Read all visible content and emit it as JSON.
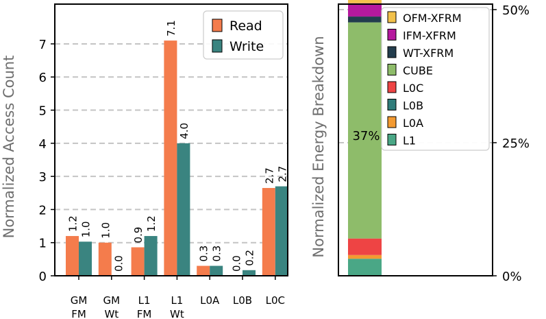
{
  "chart_data": [
    {
      "type": "bar",
      "ylabel": "Normalized Access Count",
      "ylim": [
        0,
        8.2
      ],
      "yticks": [
        0,
        1,
        2,
        3,
        4,
        5,
        6,
        7
      ],
      "grid": "y-dashed",
      "legend_position": "top-right",
      "categories": [
        {
          "line1": "GM",
          "line2": "FM"
        },
        {
          "line1": "GM",
          "line2": "Wt"
        },
        {
          "line1": "L1",
          "line2": "FM"
        },
        {
          "line1": "L1",
          "line2": "Wt"
        },
        {
          "line1": "L0A",
          "line2": ""
        },
        {
          "line1": "L0B",
          "line2": ""
        },
        {
          "line1": "L0C",
          "line2": ""
        }
      ],
      "series": [
        {
          "name": "Read",
          "color": "#f47c4c",
          "values": [
            1.2,
            1.0,
            0.86,
            7.1,
            0.3,
            0.0,
            2.65
          ],
          "labels": [
            "1.2",
            "1.0",
            "0.9",
            "7.1",
            "0.3",
            "0.0",
            "2.7"
          ]
        },
        {
          "name": "Write",
          "color": "#3a8480",
          "values": [
            1.03,
            0.0,
            1.2,
            4.0,
            0.3,
            0.17,
            2.7
          ],
          "labels": [
            "1.0",
            "0.0",
            "1.2",
            "4.0",
            "0.3",
            "0.2",
            "2.7"
          ]
        }
      ]
    },
    {
      "type": "bar",
      "stacked": true,
      "ylabel": "Normalized Energy Breakdown",
      "ylim": [
        0,
        50
      ],
      "yticks": [
        "0%",
        "25%",
        "50%"
      ],
      "ytick_values": [
        0,
        25,
        50
      ],
      "legend_position": "top-right",
      "annotation": "37%",
      "annotation_value": 26.4,
      "segments": [
        {
          "name": "L1",
          "color": "#4aa786",
          "value": 3.2
        },
        {
          "name": "L0A",
          "color": "#f39a32",
          "value": 0.7
        },
        {
          "name": "L0B",
          "color": "#2f7c7a",
          "value": 0.0
        },
        {
          "name": "L0C",
          "color": "#ee4444",
          "value": 3.1
        },
        {
          "name": "CUBE",
          "color": "#8ebc6a",
          "value": 40.6
        },
        {
          "name": "WT-XFRM",
          "color": "#233d4d",
          "value": 1.1
        },
        {
          "name": "IFM-XFRM",
          "color": "#b5199e",
          "value": 2.5
        },
        {
          "name": "OFM-XFRM",
          "color": "#f2c14b",
          "value": 1.1
        }
      ],
      "legend_order": [
        "OFM-XFRM",
        "IFM-XFRM",
        "WT-XFRM",
        "CUBE",
        "L0C",
        "L0B",
        "L0A",
        "L1"
      ]
    }
  ]
}
